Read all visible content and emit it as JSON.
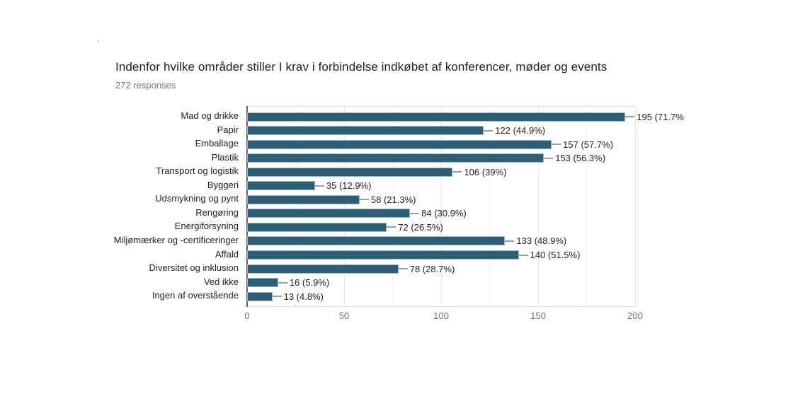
{
  "header": {
    "title": "Indenfor hvilke områder stiller I krav i forbindelse indkøbet af konferencer, møder og events",
    "subtitle": "272 responses"
  },
  "chart_data": {
    "type": "bar",
    "orientation": "horizontal",
    "title": "Indenfor hvilke områder stiller I krav i forbindelse indkøbet af konferencer, møder og events",
    "subtitle": "272 responses",
    "categories": [
      "Mad og drikke",
      "Papir",
      "Emballage",
      "Plastik",
      "Transport og logistik",
      "Byggeri",
      "Udsmykning og pynt",
      "Rengøring",
      "Energiforsyning",
      "Miljømærker og -certificeringer",
      "Affald",
      "Diversitet og inklusion",
      "Ved ikke",
      "Ingen af overstående"
    ],
    "values": [
      195,
      122,
      157,
      153,
      106,
      35,
      58,
      84,
      72,
      133,
      140,
      78,
      16,
      13
    ],
    "value_labels": [
      "195 (71.7%",
      "122 (44.9%)",
      "157 (57.7%)",
      "153 (56.3%)",
      "106 (39%)",
      "35 (12.9%)",
      "58 (21.3%)",
      "84 (30.9%)",
      "72 (26.5%)",
      "133 (48.9%)",
      "140 (51.5%)",
      "78 (28.7%)",
      "16 (5.9%)",
      "13 (4.8%)"
    ],
    "x_ticks": [
      "0",
      "50",
      "100",
      "150",
      "200"
    ],
    "x_tick_values": [
      0,
      50,
      100,
      150,
      200
    ],
    "xlim": [
      0,
      200
    ],
    "grid": true,
    "minor_grid_step": 25,
    "legend_position": "none",
    "colors": {
      "bar_fill": "#2e5e75",
      "bar_border": "#9cb9c9",
      "axis_line": "#636363",
      "gridline_major": "#e8e8e8",
      "gridline_minor": "#f4f4f4",
      "annotation_text": "#212121",
      "annotation_stem": "#9e9e9e",
      "tick_text": "#757575",
      "title_text": "#212121",
      "subtitle_text": "#757575"
    }
  }
}
